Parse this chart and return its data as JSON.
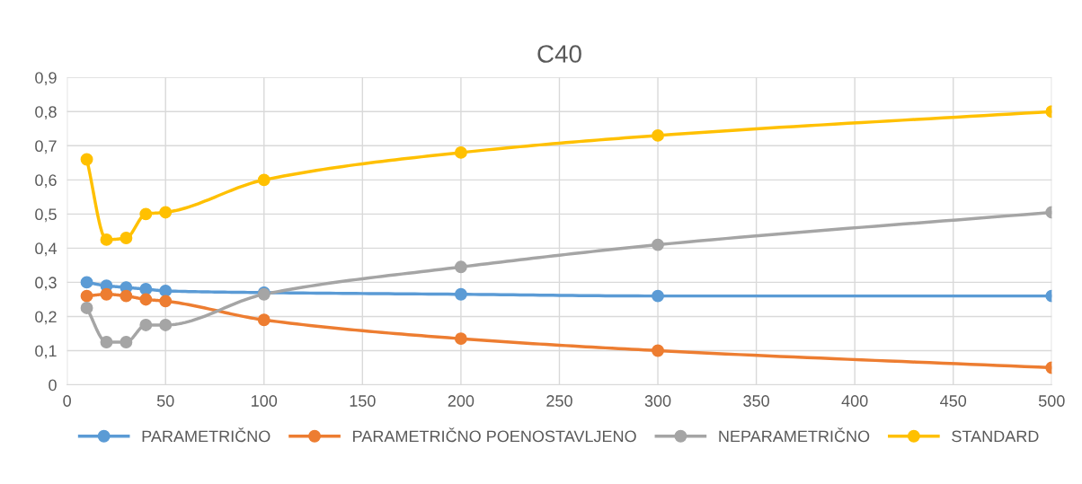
{
  "chart_data": {
    "type": "line",
    "title": "C40",
    "x": [
      10,
      20,
      30,
      40,
      50,
      100,
      200,
      300,
      500
    ],
    "series": [
      {
        "name": "PARAMETRIČNO",
        "color": "#5b9bd5",
        "values": [
          0.3,
          0.29,
          0.285,
          0.28,
          0.275,
          0.27,
          0.265,
          0.26,
          0.26
        ]
      },
      {
        "name": "PARAMETRIČNO POENOSTAVLJENO",
        "color": "#ed7d31",
        "values": [
          0.26,
          0.265,
          0.26,
          0.25,
          0.245,
          0.19,
          0.135,
          0.1,
          0.05
        ]
      },
      {
        "name": "NEPARAMETRIČNO",
        "color": "#a5a5a5",
        "values": [
          0.225,
          0.125,
          0.125,
          0.175,
          0.175,
          0.265,
          0.345,
          0.41,
          0.505
        ]
      },
      {
        "name": "STANDARD",
        "color": "#ffc000",
        "values": [
          0.66,
          0.425,
          0.43,
          0.5,
          0.505,
          0.6,
          0.68,
          0.73,
          0.8
        ]
      }
    ],
    "xlim": [
      0,
      500
    ],
    "xticks": [
      0,
      50,
      100,
      150,
      200,
      250,
      300,
      350,
      400,
      450,
      500
    ],
    "ylim": [
      0,
      0.9
    ],
    "yticks": [
      0,
      {
        "value": 0.1,
        "label": "0,1"
      },
      {
        "value": 0.2,
        "label": "0,2"
      },
      {
        "value": 0.3,
        "label": "0,3"
      },
      {
        "value": 0.4,
        "label": "0,4"
      },
      {
        "value": 0.5,
        "label": "0,5"
      },
      {
        "value": 0.6,
        "label": "0,6"
      },
      {
        "value": 0.7,
        "label": "0,7"
      },
      {
        "value": 0.8,
        "label": "0,8"
      },
      {
        "value": 0.9,
        "label": "0,9"
      }
    ],
    "grid": true,
    "legend": "bottom",
    "marker": "circle",
    "line_style": "solid"
  }
}
